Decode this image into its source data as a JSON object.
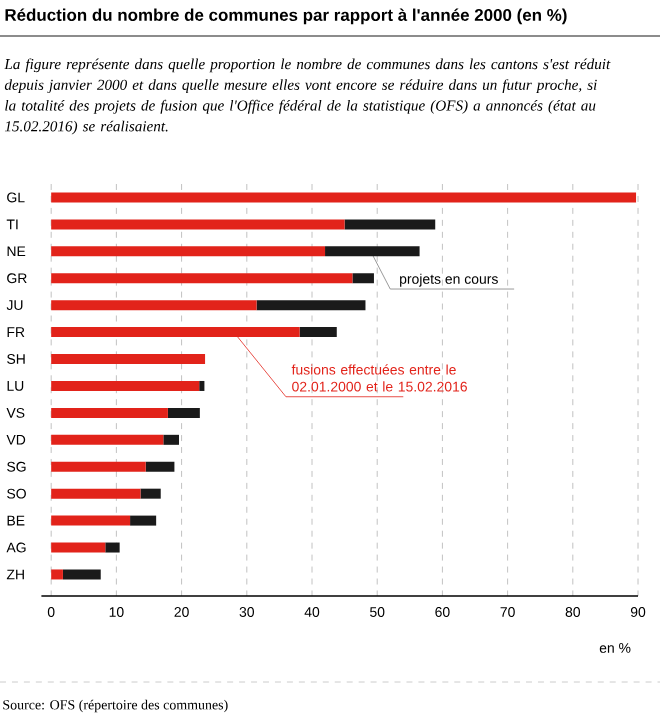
{
  "chart_data": {
    "type": "bar",
    "orientation": "horizontal",
    "stacked": true,
    "title": "Réduction du nombre de communes par rapport à l'année 2000 (en %)",
    "subtitle": "La figure représente dans quelle proportion le nombre de communes dans les cantons s'est réduit depuis janvier 2000 et dans quelle mesure elles vont encore se réduire dans un futur proche, si la totalité des projets de fusion que l'Office fédéral de la statistique (OFS) a annoncés (état au 15.02.2016) se réalisaient.",
    "categories": [
      "GL",
      "TI",
      "NE",
      "GR",
      "JU",
      "FR",
      "SH",
      "LU",
      "VS",
      "VD",
      "SG",
      "SO",
      "BE",
      "AG",
      "ZH"
    ],
    "series": [
      {
        "name": "fusions effectuées entre le 02.01.2000 et le 15.02.2016",
        "color": "#e2231a",
        "values": [
          89.7,
          45,
          42,
          46.2,
          31.5,
          38.1,
          23.6,
          22.7,
          17.9,
          17.2,
          14.5,
          13.7,
          12.1,
          8.3,
          1.8
        ]
      },
      {
        "name": "projets en cours",
        "color": "#1a1a1a",
        "values": [
          0,
          13.9,
          14.5,
          3.3,
          16.7,
          5.7,
          0,
          0.8,
          4.9,
          2.4,
          4.4,
          3.1,
          4,
          2.2,
          5.8
        ]
      }
    ],
    "xlabel": "en %",
    "xlim": [
      -1.5,
      90
    ],
    "xticks": [
      0,
      10,
      20,
      30,
      40,
      50,
      60,
      70,
      80,
      90
    ],
    "grid": "x",
    "annotations": [
      "Source: OFS (répertoire des communes)"
    ]
  }
}
